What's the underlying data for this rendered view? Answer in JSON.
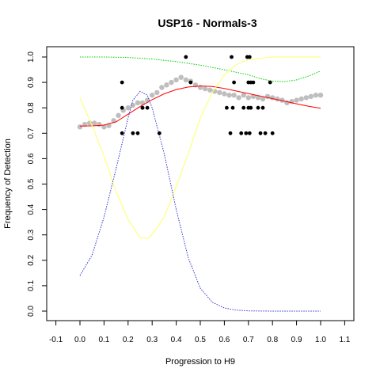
{
  "chart_data": {
    "type": "scatter",
    "title": "USP16 - Normals-3",
    "xlabel": "Progression to H9",
    "ylabel": "Frequency of Detection",
    "xlim": [
      -0.1,
      1.1
    ],
    "ylim": [
      0.0,
      1.0
    ],
    "x_ticks": [
      "-0.1",
      "0.0",
      "0.1",
      "0.2",
      "0.3",
      "0.4",
      "0.5",
      "0.6",
      "0.7",
      "0.8",
      "0.9",
      "1.0",
      "1.1"
    ],
    "y_ticks": [
      "0.0",
      "0.1",
      "0.2",
      "0.3",
      "0.4",
      "0.5",
      "0.6",
      "0.7",
      "0.8",
      "0.9",
      "1.0"
    ],
    "grid": false,
    "series": [
      {
        "kind": "points",
        "color": "#000000",
        "x": [
          0.175,
          0.175,
          0.175,
          0.22,
          0.24,
          0.26,
          0.26,
          0.28,
          0.33,
          0.44,
          0.46,
          0.61,
          0.625,
          0.63,
          0.635,
          0.64,
          0.67,
          0.68,
          0.69,
          0.695,
          0.7,
          0.7,
          0.705,
          0.705,
          0.71,
          0.71,
          0.72,
          0.74,
          0.75,
          0.76,
          0.77,
          0.79,
          0.8
        ],
        "y": [
          0.9,
          0.8,
          0.7,
          0.7,
          0.7,
          0.8,
          0.8,
          0.8,
          0.7,
          1.0,
          0.9,
          0.8,
          0.7,
          1.0,
          0.8,
          0.9,
          0.7,
          0.8,
          0.7,
          1.0,
          0.9,
          0.8,
          0.7,
          1.0,
          0.9,
          0.8,
          0.9,
          0.8,
          0.7,
          0.8,
          0.7,
          0.9,
          0.7
        ]
      },
      {
        "kind": "smoothed-points",
        "color": "#bebebe",
        "x": [
          0.0,
          0.02,
          0.04,
          0.06,
          0.08,
          0.1,
          0.12,
          0.14,
          0.16,
          0.18,
          0.2,
          0.22,
          0.24,
          0.26,
          0.28,
          0.3,
          0.32,
          0.34,
          0.36,
          0.38,
          0.4,
          0.42,
          0.44,
          0.46,
          0.48,
          0.5,
          0.52,
          0.54,
          0.56,
          0.58,
          0.6,
          0.62,
          0.64,
          0.66,
          0.68,
          0.7,
          0.72,
          0.74,
          0.76,
          0.78,
          0.8,
          0.82,
          0.84,
          0.86,
          0.88,
          0.9,
          0.92,
          0.94,
          0.96,
          0.98,
          1.0
        ],
        "y": [
          0.725,
          0.735,
          0.74,
          0.74,
          0.735,
          0.725,
          0.73,
          0.75,
          0.77,
          0.79,
          0.8,
          0.81,
          0.82,
          0.82,
          0.83,
          0.85,
          0.86,
          0.88,
          0.89,
          0.9,
          0.91,
          0.92,
          0.91,
          0.905,
          0.89,
          0.88,
          0.875,
          0.87,
          0.865,
          0.86,
          0.855,
          0.85,
          0.85,
          0.84,
          0.85,
          0.84,
          0.845,
          0.84,
          0.835,
          0.845,
          0.84,
          0.835,
          0.83,
          0.82,
          0.825,
          0.83,
          0.835,
          0.84,
          0.845,
          0.85,
          0.85
        ]
      },
      {
        "kind": "line",
        "color": "#ff0000",
        "style": "solid",
        "x": [
          0.0,
          0.05,
          0.1,
          0.15,
          0.2,
          0.25,
          0.3,
          0.35,
          0.4,
          0.45,
          0.5,
          0.55,
          0.6,
          0.65,
          0.7,
          0.75,
          0.8,
          0.85,
          0.9,
          0.95,
          1.0
        ],
        "y": [
          0.728,
          0.729,
          0.732,
          0.745,
          0.775,
          0.805,
          0.832,
          0.855,
          0.872,
          0.882,
          0.886,
          0.884,
          0.876,
          0.866,
          0.856,
          0.846,
          0.836,
          0.826,
          0.816,
          0.806,
          0.798
        ]
      },
      {
        "kind": "line",
        "color": "#00cc00",
        "style": "dotted",
        "x": [
          0.0,
          0.1,
          0.2,
          0.3,
          0.4,
          0.5,
          0.6,
          0.7,
          0.75,
          0.8,
          0.85,
          0.9,
          0.95,
          1.0
        ],
        "y": [
          1.0,
          1.0,
          0.998,
          0.992,
          0.982,
          0.968,
          0.95,
          0.93,
          0.915,
          0.905,
          0.903,
          0.91,
          0.925,
          0.945
        ]
      },
      {
        "kind": "line",
        "color": "#ffff66",
        "style": "solid",
        "x": [
          0.0,
          0.05,
          0.1,
          0.15,
          0.2,
          0.25,
          0.28,
          0.3,
          0.35,
          0.4,
          0.45,
          0.5,
          0.55,
          0.6,
          0.65,
          0.7,
          0.8,
          0.9,
          1.0
        ],
        "y": [
          0.84,
          0.73,
          0.61,
          0.47,
          0.36,
          0.29,
          0.285,
          0.3,
          0.37,
          0.49,
          0.62,
          0.76,
          0.86,
          0.93,
          0.97,
          0.99,
          1.0,
          1.0,
          1.0
        ]
      },
      {
        "kind": "line",
        "color": "#3333cc",
        "style": "dotted",
        "x": [
          0.0,
          0.05,
          0.1,
          0.15,
          0.2,
          0.22,
          0.25,
          0.28,
          0.3,
          0.35,
          0.4,
          0.45,
          0.5,
          0.55,
          0.6,
          0.65,
          0.7,
          0.8,
          0.9,
          1.0
        ],
        "y": [
          0.14,
          0.22,
          0.37,
          0.56,
          0.76,
          0.83,
          0.865,
          0.85,
          0.8,
          0.62,
          0.4,
          0.21,
          0.09,
          0.035,
          0.012,
          0.004,
          0.001,
          0.0,
          0.0,
          0.0
        ]
      }
    ]
  }
}
